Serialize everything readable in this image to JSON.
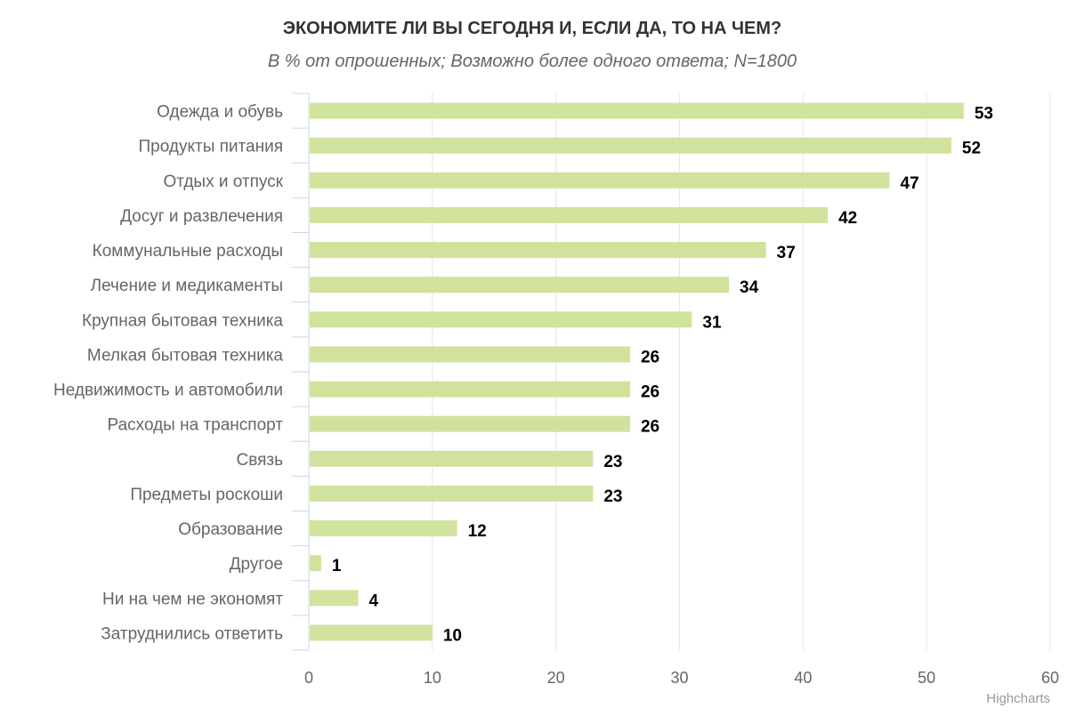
{
  "chart_data": {
    "type": "bar",
    "orientation": "horizontal",
    "title": "ЭКОНОМИТЕ ЛИ ВЫ СЕГОДНЯ И, ЕСЛИ ДА, ТО НА ЧЕМ?",
    "subtitle": "В % от опрошенных; Возможно более одного ответа; N=1800",
    "categories": [
      "Одежда и обувь",
      "Продукты питания",
      "Отдых и отпуск",
      "Досуг и развлечения",
      "Коммунальные расходы",
      "Лечение и медикаменты",
      "Крупная бытовая техника",
      "Мелкая бытовая техника",
      "Недвижимость и автомобили",
      "Расходы на транспорт",
      "Связь",
      "Предметы роскоши",
      "Образование",
      "Другое",
      "Ни на чем не экономят",
      "Затруднились ответить"
    ],
    "values": [
      53,
      52,
      47,
      42,
      37,
      34,
      31,
      26,
      26,
      26,
      23,
      23,
      12,
      1,
      4,
      10
    ],
    "xlim": [
      0,
      60
    ],
    "xticks": [
      0,
      10,
      20,
      30,
      40,
      50,
      60
    ],
    "grid": true,
    "legend": "none",
    "data_labels": true,
    "colors": {
      "bar": "#d1e29d",
      "grid": "#e6e6e6",
      "axis": "#ccd6eb"
    }
  },
  "credits": "Highcharts"
}
